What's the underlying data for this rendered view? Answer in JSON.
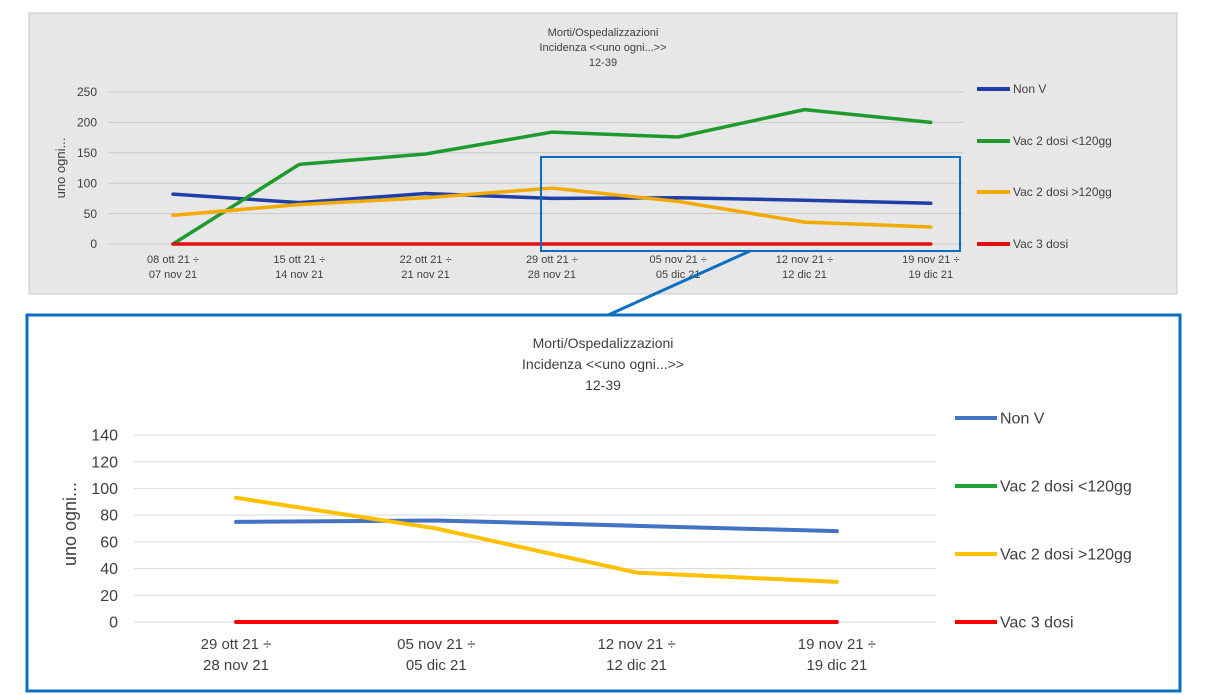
{
  "chart_data": [
    {
      "type": "line",
      "title": "Morti/Ospedalizzazioni",
      "subtitle": [
        "Incidenza <<uno ogni...>>",
        "12-39"
      ],
      "ylabel": "uno ogni...",
      "ylim": [
        0,
        250
      ],
      "yticks": [
        "0",
        "50",
        "100",
        "150",
        "200",
        "250"
      ],
      "categories": [
        [
          "08 ott 21 ÷",
          "07 nov 21"
        ],
        [
          "15 ott 21 ÷",
          "14 nov 21"
        ],
        [
          "22 ott 21 ÷",
          "21 nov 21"
        ],
        [
          "29 ott 21 ÷",
          "28 nov 21"
        ],
        [
          "05 nov 21 ÷",
          "05 dic 21"
        ],
        [
          "12 nov 21 ÷",
          "12 dic 21"
        ],
        [
          "19 nov 21 ÷",
          "19 dic 21"
        ]
      ],
      "series": [
        {
          "name": "Non V",
          "color": "#1f3ea8",
          "values": [
            82,
            68,
            83,
            75,
            76,
            72,
            67
          ]
        },
        {
          "name": "Vac 2 dosi <120gg",
          "color": "#1e9a2f",
          "values": [
            0,
            131,
            148,
            184,
            176,
            221,
            200
          ]
        },
        {
          "name": "Vac 2 dosi >120gg",
          "color": "#f2a900",
          "values": [
            47,
            65,
            76,
            92,
            70,
            36,
            28
          ]
        },
        {
          "name": "Vac 3 dosi",
          "color": "#e01010",
          "values": [
            0,
            0,
            0,
            0,
            0,
            0,
            0
          ]
        }
      ],
      "legend": "right",
      "grid": true
    },
    {
      "type": "line",
      "title": "Morti/Ospedalizzazioni",
      "subtitle": [
        "Incidenza <<uno ogni...>>",
        "12-39"
      ],
      "ylabel": "uno ogni...",
      "ylim": [
        0,
        140
      ],
      "yticks": [
        "0",
        "20",
        "40",
        "60",
        "80",
        "100",
        "120",
        "140"
      ],
      "categories": [
        [
          "29 ott 21 ÷",
          "28 nov 21"
        ],
        [
          "05 nov 21 ÷",
          "05 dic 21"
        ],
        [
          "12 nov 21 ÷",
          "12 dic 21"
        ],
        [
          "19 nov 21 ÷",
          "19 dic 21"
        ]
      ],
      "series": [
        {
          "name": "Non V",
          "color": "#4472c4",
          "values": [
            75,
            76,
            72,
            68
          ]
        },
        {
          "name": "Vac 2 dosi <120gg",
          "color": "#21a33a",
          "values": [
            null,
            null,
            null,
            null
          ]
        },
        {
          "name": "Vac 2 dosi >120gg",
          "color": "#ffc000",
          "values": [
            93,
            70,
            37,
            30
          ]
        },
        {
          "name": "Vac 3 dosi",
          "color": "#ff0000",
          "values": [
            0,
            0,
            0,
            0
          ]
        }
      ],
      "legend": "right",
      "grid": true
    }
  ],
  "colors": {
    "top_background": "#e7e7e7",
    "zoom_frame": "#0a6fc2"
  }
}
